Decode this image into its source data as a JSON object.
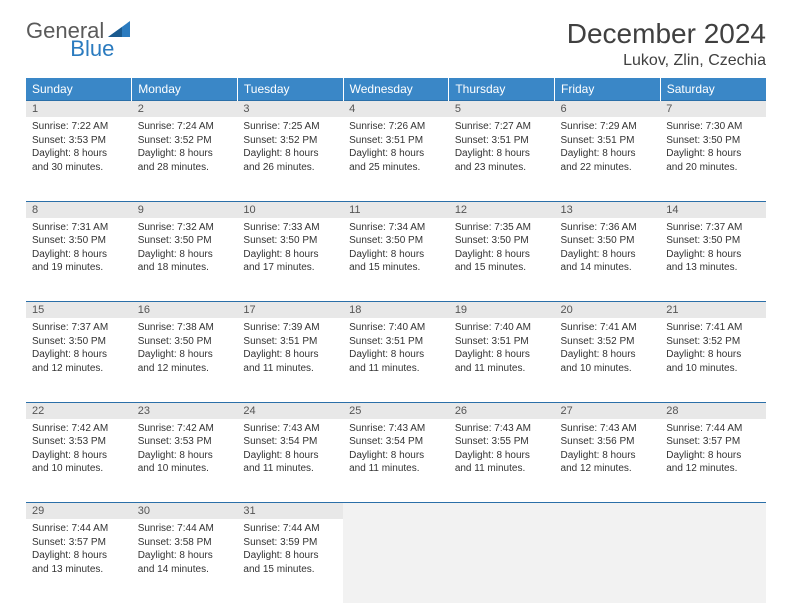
{
  "logo": {
    "general": "General",
    "blue": "Blue"
  },
  "title": "December 2024",
  "location": "Lukov, Zlin, Czechia",
  "colors": {
    "header_bg": "#3a87c7",
    "header_text": "#ffffff",
    "daynum_bg": "#e8e8e8",
    "border": "#2b6fa8",
    "logo_gray": "#5a5a5a",
    "logo_blue": "#2b7bbf"
  },
  "weekdays": [
    "Sunday",
    "Monday",
    "Tuesday",
    "Wednesday",
    "Thursday",
    "Friday",
    "Saturday"
  ],
  "weeks": [
    [
      {
        "n": "1",
        "sr": "7:22 AM",
        "ss": "3:53 PM",
        "dl": "8 hours and 30 minutes."
      },
      {
        "n": "2",
        "sr": "7:24 AM",
        "ss": "3:52 PM",
        "dl": "8 hours and 28 minutes."
      },
      {
        "n": "3",
        "sr": "7:25 AM",
        "ss": "3:52 PM",
        "dl": "8 hours and 26 minutes."
      },
      {
        "n": "4",
        "sr": "7:26 AM",
        "ss": "3:51 PM",
        "dl": "8 hours and 25 minutes."
      },
      {
        "n": "5",
        "sr": "7:27 AM",
        "ss": "3:51 PM",
        "dl": "8 hours and 23 minutes."
      },
      {
        "n": "6",
        "sr": "7:29 AM",
        "ss": "3:51 PM",
        "dl": "8 hours and 22 minutes."
      },
      {
        "n": "7",
        "sr": "7:30 AM",
        "ss": "3:50 PM",
        "dl": "8 hours and 20 minutes."
      }
    ],
    [
      {
        "n": "8",
        "sr": "7:31 AM",
        "ss": "3:50 PM",
        "dl": "8 hours and 19 minutes."
      },
      {
        "n": "9",
        "sr": "7:32 AM",
        "ss": "3:50 PM",
        "dl": "8 hours and 18 minutes."
      },
      {
        "n": "10",
        "sr": "7:33 AM",
        "ss": "3:50 PM",
        "dl": "8 hours and 17 minutes."
      },
      {
        "n": "11",
        "sr": "7:34 AM",
        "ss": "3:50 PM",
        "dl": "8 hours and 15 minutes."
      },
      {
        "n": "12",
        "sr": "7:35 AM",
        "ss": "3:50 PM",
        "dl": "8 hours and 15 minutes."
      },
      {
        "n": "13",
        "sr": "7:36 AM",
        "ss": "3:50 PM",
        "dl": "8 hours and 14 minutes."
      },
      {
        "n": "14",
        "sr": "7:37 AM",
        "ss": "3:50 PM",
        "dl": "8 hours and 13 minutes."
      }
    ],
    [
      {
        "n": "15",
        "sr": "7:37 AM",
        "ss": "3:50 PM",
        "dl": "8 hours and 12 minutes."
      },
      {
        "n": "16",
        "sr": "7:38 AM",
        "ss": "3:50 PM",
        "dl": "8 hours and 12 minutes."
      },
      {
        "n": "17",
        "sr": "7:39 AM",
        "ss": "3:51 PM",
        "dl": "8 hours and 11 minutes."
      },
      {
        "n": "18",
        "sr": "7:40 AM",
        "ss": "3:51 PM",
        "dl": "8 hours and 11 minutes."
      },
      {
        "n": "19",
        "sr": "7:40 AM",
        "ss": "3:51 PM",
        "dl": "8 hours and 11 minutes."
      },
      {
        "n": "20",
        "sr": "7:41 AM",
        "ss": "3:52 PM",
        "dl": "8 hours and 10 minutes."
      },
      {
        "n": "21",
        "sr": "7:41 AM",
        "ss": "3:52 PM",
        "dl": "8 hours and 10 minutes."
      }
    ],
    [
      {
        "n": "22",
        "sr": "7:42 AM",
        "ss": "3:53 PM",
        "dl": "8 hours and 10 minutes."
      },
      {
        "n": "23",
        "sr": "7:42 AM",
        "ss": "3:53 PM",
        "dl": "8 hours and 10 minutes."
      },
      {
        "n": "24",
        "sr": "7:43 AM",
        "ss": "3:54 PM",
        "dl": "8 hours and 11 minutes."
      },
      {
        "n": "25",
        "sr": "7:43 AM",
        "ss": "3:54 PM",
        "dl": "8 hours and 11 minutes."
      },
      {
        "n": "26",
        "sr": "7:43 AM",
        "ss": "3:55 PM",
        "dl": "8 hours and 11 minutes."
      },
      {
        "n": "27",
        "sr": "7:43 AM",
        "ss": "3:56 PM",
        "dl": "8 hours and 12 minutes."
      },
      {
        "n": "28",
        "sr": "7:44 AM",
        "ss": "3:57 PM",
        "dl": "8 hours and 12 minutes."
      }
    ],
    [
      {
        "n": "29",
        "sr": "7:44 AM",
        "ss": "3:57 PM",
        "dl": "8 hours and 13 minutes."
      },
      {
        "n": "30",
        "sr": "7:44 AM",
        "ss": "3:58 PM",
        "dl": "8 hours and 14 minutes."
      },
      {
        "n": "31",
        "sr": "7:44 AM",
        "ss": "3:59 PM",
        "dl": "8 hours and 15 minutes."
      },
      null,
      null,
      null,
      null
    ]
  ],
  "labels": {
    "sunrise": "Sunrise:",
    "sunset": "Sunset:",
    "daylight": "Daylight:"
  }
}
